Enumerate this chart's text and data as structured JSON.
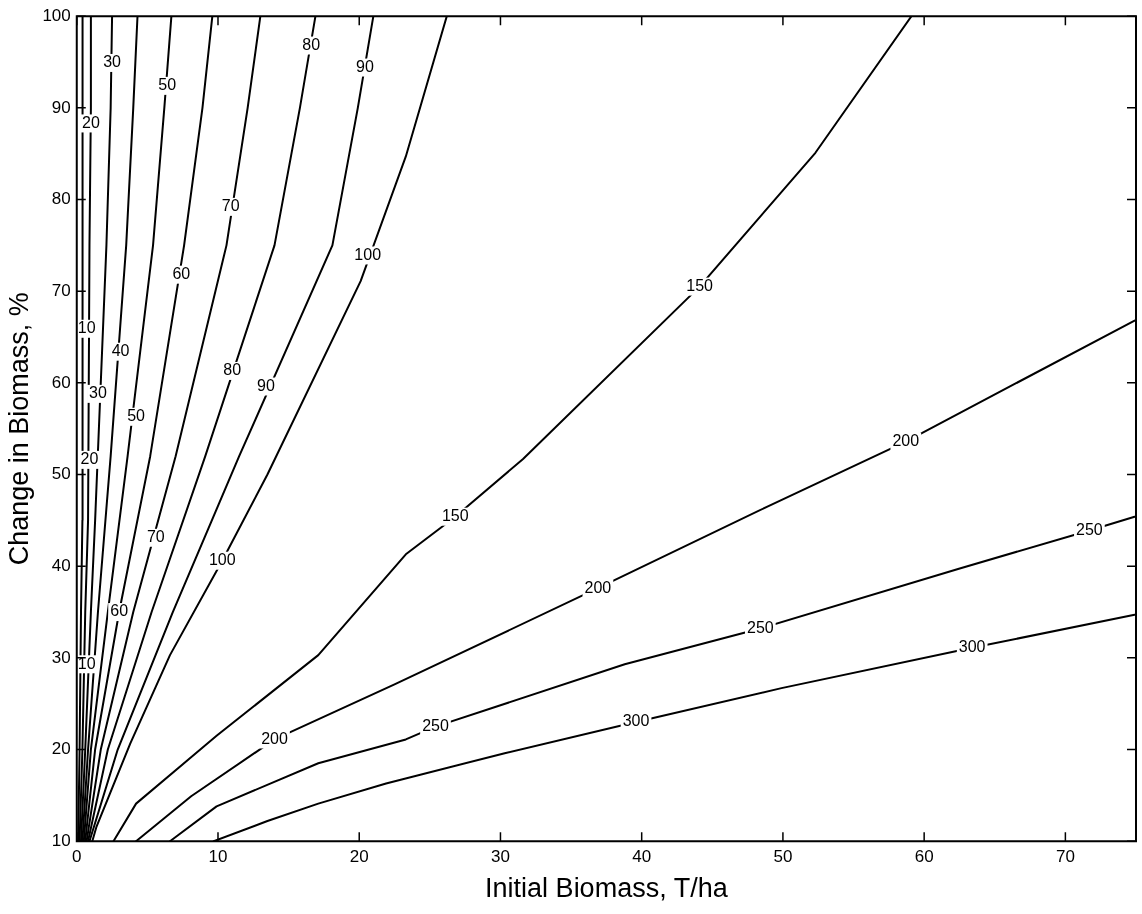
{
  "chart_data": {
    "type": "line",
    "xlabel": "Initial Biomass, T/ha",
    "ylabel": "Change in Biomass, %",
    "xlim": [
      0,
      75
    ],
    "ylim": [
      10,
      100
    ],
    "xticks": [
      0,
      10,
      20,
      30,
      40,
      50,
      60,
      70
    ],
    "yticks": [
      10,
      20,
      30,
      40,
      50,
      60,
      70,
      80,
      90,
      100
    ],
    "grid": false,
    "legend": false,
    "marker": "none",
    "line_style": "solid",
    "series": [
      {
        "color": "#000000",
        "x": [
          0.1,
          0.2,
          0.3,
          0.4,
          0.4,
          0.4,
          0.43
        ],
        "values": [
          10,
          20,
          35,
          45,
          75,
          90,
          100
        ]
      },
      {
        "color": "#000000",
        "x": [
          0.2,
          0.4,
          0.6,
          0.8,
          0.9,
          1.0,
          1.0
        ],
        "values": [
          10,
          20,
          35,
          45,
          75,
          90,
          100
        ]
      },
      {
        "color": "#000000",
        "x": [
          0.3,
          0.6,
          1.0,
          1.3,
          2.1,
          2.4,
          2.5
        ],
        "values": [
          10,
          20,
          35,
          45,
          75,
          90,
          100
        ]
      },
      {
        "color": "#000000",
        "x": [
          0.4,
          0.8,
          1.5,
          2.4,
          3.5,
          4.0,
          4.3
        ],
        "values": [
          10,
          20,
          35,
          52,
          75,
          90,
          100
        ]
      },
      {
        "color": "#000000",
        "x": [
          0.5,
          1.0,
          2.2,
          3.6,
          5.4,
          6.2,
          6.7
        ],
        "values": [
          10,
          20,
          35,
          52,
          75,
          90,
          100
        ]
      },
      {
        "color": "#000000",
        "x": [
          0.6,
          1.3,
          3.0,
          5.2,
          7.6,
          8.9,
          9.6
        ],
        "values": [
          10,
          20,
          35,
          52,
          75,
          90,
          100
        ]
      },
      {
        "color": "#000000",
        "x": [
          0.7,
          1.7,
          4.0,
          7.0,
          10.6,
          12.1,
          13.0
        ],
        "values": [
          10,
          20,
          35,
          52,
          75,
          90,
          100
        ]
      },
      {
        "color": "#000000",
        "x": [
          0.8,
          2.2,
          5.3,
          9.1,
          14.0,
          15.8,
          16.9
        ],
        "values": [
          10,
          20,
          35,
          52,
          75,
          90,
          100
        ]
      },
      {
        "color": "#000000",
        "x": [
          0.9,
          2.9,
          6.8,
          11.5,
          18.1,
          19.9,
          21.0
        ],
        "values": [
          10,
          20,
          35,
          52,
          75,
          90,
          100
        ]
      },
      {
        "color": "#000000",
        "x": [
          1.1,
          1.4,
          3.8,
          6.6,
          10.3,
          13.5,
          20.1,
          23.3,
          26.2
        ],
        "values": [
          10,
          11.6,
          20.7,
          30.3,
          40.6,
          50,
          71.1,
          84.7,
          100
        ]
      },
      {
        "color": "#000000",
        "x": [
          2.6,
          4.2,
          9.9,
          17.1,
          23.3,
          26.8,
          31.6,
          44.1,
          52.3,
          59.1
        ],
        "values": [
          10,
          14.1,
          21.5,
          30.3,
          41.3,
          45.4,
          51.7,
          70.5,
          85.1,
          100
        ]
      },
      {
        "color": "#000000",
        "x": [
          4.2,
          8.1,
          14.0,
          22.5,
          36.9,
          48.9,
          58.7,
          74.9
        ],
        "values": [
          10,
          14.9,
          21.1,
          27.1,
          37.6,
          46.5,
          53.6,
          66.8
        ]
      },
      {
        "color": "#000000",
        "x": [
          6.6,
          9.9,
          17.1,
          23.3,
          25.4,
          38.8,
          48.4,
          62.4,
          71.7,
          74.9
        ],
        "values": [
          10,
          13.8,
          18.5,
          21.1,
          22.5,
          29.3,
          33.2,
          39.7,
          43.9,
          45.4
        ]
      },
      {
        "color": "#000000",
        "x": [
          9.7,
          13.5,
          17.1,
          21.9,
          30.3,
          39.6,
          49.9,
          63.4,
          74.9
        ],
        "values": [
          10,
          12.2,
          14.1,
          16.3,
          19.6,
          23.0,
          26.7,
          31.1,
          34.7
        ]
      }
    ],
    "annotations": [
      {
        "text": "10",
        "x": 0.7,
        "y": 65.9
      },
      {
        "text": "10",
        "x": 0.7,
        "y": 29.3
      },
      {
        "text": "20",
        "x": 1.0,
        "y": 88.3
      },
      {
        "text": "20",
        "x": 0.9,
        "y": 51.6
      },
      {
        "text": "30",
        "x": 2.5,
        "y": 94.9
      },
      {
        "text": "30",
        "x": 1.5,
        "y": 58.8
      },
      {
        "text": "40",
        "x": 3.1,
        "y": 63.4
      },
      {
        "text": "50",
        "x": 6.4,
        "y": 92.4
      },
      {
        "text": "50",
        "x": 4.2,
        "y": 56.3
      },
      {
        "text": "60",
        "x": 7.4,
        "y": 71.8
      },
      {
        "text": "60",
        "x": 3.0,
        "y": 35
      },
      {
        "text": "70",
        "x": 10.9,
        "y": 79.2
      },
      {
        "text": "70",
        "x": 5.6,
        "y": 43.1
      },
      {
        "text": "80",
        "x": 16.6,
        "y": 96.8
      },
      {
        "text": "80",
        "x": 11.0,
        "y": 61.3
      },
      {
        "text": "90",
        "x": 20.4,
        "y": 94.4
      },
      {
        "text": "90",
        "x": 13.4,
        "y": 59.6
      },
      {
        "text": "100",
        "x": 20.6,
        "y": 73.9
      },
      {
        "text": "100",
        "x": 10.3,
        "y": 40.6
      },
      {
        "text": "150",
        "x": 26.8,
        "y": 45.4
      },
      {
        "text": "150",
        "x": 44.1,
        "y": 70.5
      },
      {
        "text": "200",
        "x": 14.0,
        "y": 21.1
      },
      {
        "text": "200",
        "x": 36.9,
        "y": 37.6
      },
      {
        "text": "200",
        "x": 58.7,
        "y": 53.6
      },
      {
        "text": "250",
        "x": 25.4,
        "y": 22.5
      },
      {
        "text": "250",
        "x": 48.4,
        "y": 33.2
      },
      {
        "text": "250",
        "x": 71.7,
        "y": 43.9
      },
      {
        "text": "300",
        "x": 39.6,
        "y": 23.0
      },
      {
        "text": "300",
        "x": 63.4,
        "y": 31.1
      }
    ]
  }
}
